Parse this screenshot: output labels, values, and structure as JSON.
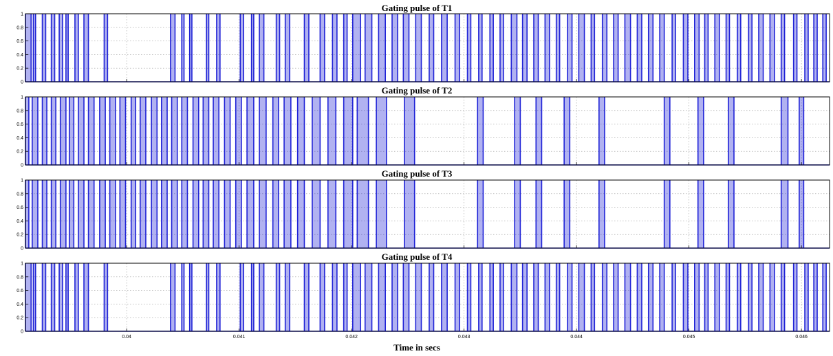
{
  "chart_data": [
    {
      "type": "line",
      "title": "Gating pulse of T1",
      "ylim": [
        0,
        1
      ],
      "yticks": [
        "0",
        "0.2",
        "0.4",
        "0.6",
        "0.8",
        "1"
      ],
      "xlim": [
        0.0391,
        0.04625
      ],
      "grid": true,
      "series": [
        {
          "color": "#1f22d6",
          "values": [
            0,
            1
          ],
          "pulse_edges": [
            0.0391,
            0.03915,
            0.03917,
            0.03919,
            0.03925,
            0.03928,
            0.03933,
            0.03936,
            0.0394,
            0.03943,
            0.03946,
            0.03948,
            0.03954,
            0.03957,
            0.03962,
            0.03966,
            0.0398,
            0.03983,
            0.04039,
            0.04043,
            0.04049,
            0.04051,
            0.04056,
            0.04058,
            0.04071,
            0.04073,
            0.0408,
            0.04083,
            0.04101,
            0.04104,
            0.04111,
            0.04113,
            0.04118,
            0.04122,
            0.04133,
            0.04136,
            0.04141,
            0.04145,
            0.04158,
            0.04162,
            0.04172,
            0.04176,
            0.04183,
            0.04187,
            0.04193,
            0.04196,
            0.04201,
            0.04208,
            0.04212,
            0.04218,
            0.04224,
            0.0423,
            0.04236,
            0.04241,
            0.04246,
            0.04251,
            0.04257,
            0.04262,
            0.04269,
            0.04273,
            0.0428,
            0.04285,
            0.04292,
            0.04296,
            0.04303,
            0.04306,
            0.04313,
            0.04316,
            0.04323,
            0.04326,
            0.04332,
            0.04335,
            0.04342,
            0.04347,
            0.04352,
            0.04356,
            0.04362,
            0.04366,
            0.04372,
            0.04376,
            0.04382,
            0.04385,
            0.04392,
            0.04396,
            0.04402,
            0.04407,
            0.04413,
            0.04416,
            0.04423,
            0.04427,
            0.04433,
            0.04437,
            0.04443,
            0.04448,
            0.04454,
            0.04458,
            0.04464,
            0.04468,
            0.04474,
            0.04478,
            0.04485,
            0.04488,
            0.04495,
            0.04499,
            0.04505,
            0.04509,
            0.04514,
            0.04517,
            0.04523,
            0.04527,
            0.04533,
            0.04536,
            0.04543,
            0.04546,
            0.04553,
            0.04556,
            0.04562,
            0.04566,
            0.04572,
            0.04576,
            0.04582,
            0.04585,
            0.04593,
            0.04596,
            0.04603,
            0.04606,
            0.04611,
            0.04614,
            0.04619,
            0.04622
          ]
        }
      ]
    },
    {
      "type": "line",
      "title": "Gating pulse of T2",
      "ylim": [
        0,
        1
      ],
      "yticks": [
        "0",
        "0.2",
        "0.4",
        "0.6",
        "0.8",
        "1"
      ],
      "xlim": [
        0.0391,
        0.04625
      ],
      "grid": true,
      "series": [
        {
          "color": "#1f22d6",
          "values": [
            0,
            1
          ],
          "pulse_edges": [
            0.0391,
            0.03913,
            0.03916,
            0.03921,
            0.03925,
            0.03929,
            0.03933,
            0.03937,
            0.03941,
            0.03946,
            0.03949,
            0.03953,
            0.03957,
            0.03962,
            0.03966,
            0.03971,
            0.03976,
            0.03981,
            0.03985,
            0.0399,
            0.03994,
            0.03999,
            0.04004,
            0.04008,
            0.04012,
            0.04017,
            0.04022,
            0.04027,
            0.04031,
            0.04036,
            0.0404,
            0.04045,
            0.04049,
            0.04054,
            0.04059,
            0.04064,
            0.04068,
            0.04073,
            0.04077,
            0.04082,
            0.04087,
            0.04092,
            0.04097,
            0.04102,
            0.04107,
            0.04113,
            0.04118,
            0.04124,
            0.0413,
            0.04135,
            0.0414,
            0.04146,
            0.04152,
            0.04158,
            0.04165,
            0.04172,
            0.04179,
            0.04186,
            0.04193,
            0.04201,
            0.04205,
            0.04215,
            0.04222,
            0.04231,
            0.04247,
            0.04256,
            0.04312,
            0.04317,
            0.04345,
            0.0435,
            0.04364,
            0.04369,
            0.04389,
            0.04394,
            0.0442,
            0.04425,
            0.04478,
            0.04483,
            0.04508,
            0.04513,
            0.04535,
            0.0454,
            0.04582,
            0.04588,
            0.04598,
            0.04602
          ]
        }
      ]
    },
    {
      "type": "line",
      "title": "Gating pulse of T3",
      "ylim": [
        0,
        1
      ],
      "yticks": [
        "0",
        "0.2",
        "0.4",
        "0.6",
        "0.8",
        "1"
      ],
      "xlim": [
        0.0391,
        0.04625
      ],
      "grid": true,
      "series": [
        {
          "color": "#1f22d6",
          "values": [
            0,
            1
          ],
          "pulse_edges": [
            0.0391,
            0.03913,
            0.03916,
            0.03921,
            0.03925,
            0.03929,
            0.03933,
            0.03937,
            0.03941,
            0.03946,
            0.03949,
            0.03953,
            0.03957,
            0.03962,
            0.03966,
            0.03971,
            0.03976,
            0.03981,
            0.03985,
            0.0399,
            0.03994,
            0.03999,
            0.04004,
            0.04008,
            0.04012,
            0.04017,
            0.04022,
            0.04027,
            0.04031,
            0.04036,
            0.0404,
            0.04045,
            0.04049,
            0.04054,
            0.04059,
            0.04064,
            0.04068,
            0.04073,
            0.04077,
            0.04082,
            0.04087,
            0.04092,
            0.04097,
            0.04102,
            0.04107,
            0.04113,
            0.04118,
            0.04124,
            0.0413,
            0.04135,
            0.0414,
            0.04146,
            0.04152,
            0.04158,
            0.04165,
            0.04172,
            0.04179,
            0.04186,
            0.04193,
            0.04201,
            0.04205,
            0.04215,
            0.04222,
            0.04231,
            0.04247,
            0.04256,
            0.04312,
            0.04317,
            0.04345,
            0.0435,
            0.04364,
            0.04369,
            0.04389,
            0.04394,
            0.0442,
            0.04425,
            0.04478,
            0.04483,
            0.04508,
            0.04513,
            0.04535,
            0.0454,
            0.04582,
            0.04588,
            0.04598,
            0.04602
          ]
        }
      ]
    },
    {
      "type": "line",
      "title": "Gating pulse of T4",
      "xlabel": "Time in secs",
      "ylim": [
        0,
        1
      ],
      "yticks": [
        "0",
        "0.2",
        "0.4",
        "0.6",
        "0.8",
        "1"
      ],
      "xlim": [
        0.0391,
        0.04625
      ],
      "xticks": [
        0.04,
        0.041,
        0.042,
        0.043,
        0.044,
        0.045,
        0.046
      ],
      "xtick_labels": [
        "0.04",
        "0.041",
        "0.042",
        "0.043",
        "0.044",
        "0.045",
        "0.046"
      ],
      "grid": true,
      "series": [
        {
          "color": "#1f22d6",
          "values": [
            0,
            1
          ],
          "pulse_edges": [
            0.0391,
            0.03915,
            0.03917,
            0.03919,
            0.03925,
            0.03928,
            0.03933,
            0.03936,
            0.0394,
            0.03943,
            0.03946,
            0.03948,
            0.03954,
            0.03957,
            0.03962,
            0.03966,
            0.0398,
            0.03983,
            0.04039,
            0.04043,
            0.04049,
            0.04051,
            0.04056,
            0.04058,
            0.04071,
            0.04073,
            0.0408,
            0.04083,
            0.04101,
            0.04104,
            0.04111,
            0.04113,
            0.04118,
            0.04122,
            0.04133,
            0.04136,
            0.04141,
            0.04145,
            0.04158,
            0.04162,
            0.04172,
            0.04176,
            0.04183,
            0.04187,
            0.04193,
            0.04196,
            0.04201,
            0.04208,
            0.04212,
            0.04218,
            0.04224,
            0.0423,
            0.04236,
            0.04241,
            0.04246,
            0.04251,
            0.04257,
            0.04262,
            0.04269,
            0.04273,
            0.0428,
            0.04285,
            0.04292,
            0.04296,
            0.04303,
            0.04306,
            0.04313,
            0.04316,
            0.04323,
            0.04326,
            0.04332,
            0.04335,
            0.04342,
            0.04347,
            0.04352,
            0.04356,
            0.04362,
            0.04366,
            0.04372,
            0.04376,
            0.04382,
            0.04385,
            0.04392,
            0.04396,
            0.04402,
            0.04407,
            0.04413,
            0.04416,
            0.04423,
            0.04427,
            0.04433,
            0.04437,
            0.04443,
            0.04448,
            0.04454,
            0.04458,
            0.04464,
            0.04468,
            0.04474,
            0.04478,
            0.04485,
            0.04488,
            0.04495,
            0.04499,
            0.04505,
            0.04509,
            0.04514,
            0.04517,
            0.04523,
            0.04527,
            0.04533,
            0.04536,
            0.04543,
            0.04546,
            0.04553,
            0.04556,
            0.04562,
            0.04566,
            0.04572,
            0.04576,
            0.04582,
            0.04585,
            0.04593,
            0.04596,
            0.04603,
            0.04606,
            0.04611,
            0.04614,
            0.04619,
            0.04622
          ]
        }
      ]
    }
  ]
}
